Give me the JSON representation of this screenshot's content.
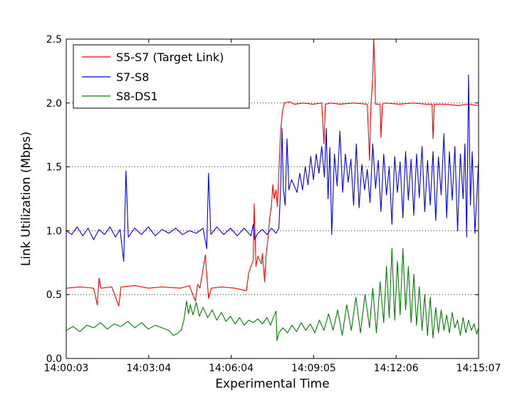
{
  "chart_data": {
    "type": "line",
    "xlabel": "Experimental Time",
    "ylabel": "Link Utilization (Mbps)",
    "x_tick_labels": [
      "14:00:03",
      "14:03:04",
      "14:06:04",
      "14:09:05",
      "14:12:06",
      "14:15:07"
    ],
    "xlim_seconds_from_start": [
      0,
      904
    ],
    "ylim": [
      0.0,
      2.5
    ],
    "y_ticks": [
      "0.0",
      "0.5",
      "1.0",
      "1.5",
      "2.0",
      "2.5"
    ],
    "grid": "horizontal dotted",
    "legend_position": "upper-left",
    "series": [
      {
        "name": "S5-S7 (Target Link)",
        "color": "#ff0000",
        "points": [
          [
            0,
            0.55
          ],
          [
            30,
            0.56
          ],
          [
            60,
            0.55
          ],
          [
            68,
            0.42
          ],
          [
            72,
            0.63
          ],
          [
            76,
            0.55
          ],
          [
            100,
            0.56
          ],
          [
            115,
            0.41
          ],
          [
            120,
            0.56
          ],
          [
            150,
            0.57
          ],
          [
            180,
            0.55
          ],
          [
            210,
            0.56
          ],
          [
            250,
            0.55
          ],
          [
            270,
            0.57
          ],
          [
            283,
            0.45
          ],
          [
            288,
            0.58
          ],
          [
            293,
            0.55
          ],
          [
            305,
            0.81
          ],
          [
            310,
            0.56
          ],
          [
            312,
            0.47
          ],
          [
            318,
            0.55
          ],
          [
            340,
            0.56
          ],
          [
            370,
            0.55
          ],
          [
            395,
            0.53
          ],
          [
            400,
            0.67
          ],
          [
            405,
            0.72
          ],
          [
            410,
            0.77
          ],
          [
            412,
            1.21
          ],
          [
            416,
            0.72
          ],
          [
            420,
            0.8
          ],
          [
            428,
            0.74
          ],
          [
            430,
            0.82
          ],
          [
            435,
            0.6
          ],
          [
            438,
            0.8
          ],
          [
            442,
            0.93
          ],
          [
            446,
            1.1
          ],
          [
            450,
            1.2
          ],
          [
            453,
            1.36
          ],
          [
            456,
            1.25
          ],
          [
            460,
            1.32
          ],
          [
            463,
            1.19
          ],
          [
            466,
            1.45
          ],
          [
            470,
            1.78
          ],
          [
            474,
            1.93
          ],
          [
            478,
            2.0
          ],
          [
            490,
            2.01
          ],
          [
            500,
            1.99
          ],
          [
            520,
            2.0
          ],
          [
            540,
            1.99
          ],
          [
            560,
            2.0
          ],
          [
            565,
            1.68
          ],
          [
            568,
            1.99
          ],
          [
            580,
            2.0
          ],
          [
            600,
            1.99
          ],
          [
            630,
            2.0
          ],
          [
            660,
            1.99
          ],
          [
            665,
            1.55
          ],
          [
            668,
            1.98
          ],
          [
            672,
            2.2
          ],
          [
            674,
            2.5
          ],
          [
            676,
            2.3
          ],
          [
            678,
            1.99
          ],
          [
            688,
            1.99
          ],
          [
            690,
            1.73
          ],
          [
            693,
            1.99
          ],
          [
            700,
            2.0
          ],
          [
            730,
            1.99
          ],
          [
            760,
            2.0
          ],
          [
            790,
            1.99
          ],
          [
            802,
            1.99
          ],
          [
            804,
            1.72
          ],
          [
            807,
            1.99
          ],
          [
            830,
            1.99
          ],
          [
            860,
            1.98
          ],
          [
            880,
            1.99
          ],
          [
            904,
            1.98
          ]
        ]
      },
      {
        "name": "S7-S8",
        "color": "#0000ff",
        "points": [
          [
            0,
            1.0
          ],
          [
            12,
            0.97
          ],
          [
            24,
            1.03
          ],
          [
            36,
            0.96
          ],
          [
            48,
            1.02
          ],
          [
            60,
            0.93
          ],
          [
            72,
            1.01
          ],
          [
            84,
            0.97
          ],
          [
            96,
            1.03
          ],
          [
            108,
            0.95
          ],
          [
            118,
            1.01
          ],
          [
            126,
            0.76
          ],
          [
            131,
            1.47
          ],
          [
            136,
            0.95
          ],
          [
            150,
            1.02
          ],
          [
            165,
            0.97
          ],
          [
            180,
            1.03
          ],
          [
            195,
            0.96
          ],
          [
            210,
            1.01
          ],
          [
            225,
            0.98
          ],
          [
            240,
            1.02
          ],
          [
            255,
            0.97
          ],
          [
            270,
            1.0
          ],
          [
            285,
            0.98
          ],
          [
            300,
            1.02
          ],
          [
            308,
            0.86
          ],
          [
            312,
            1.45
          ],
          [
            317,
            0.97
          ],
          [
            330,
            1.03
          ],
          [
            345,
            0.97
          ],
          [
            360,
            1.02
          ],
          [
            375,
            0.96
          ],
          [
            390,
            1.02
          ],
          [
            405,
            0.96
          ],
          [
            410,
            1.05
          ],
          [
            413,
            0.93
          ],
          [
            420,
            0.98
          ],
          [
            430,
            1.01
          ],
          [
            440,
            0.97
          ],
          [
            450,
            1.02
          ],
          [
            460,
            0.98
          ],
          [
            466,
            1.02
          ],
          [
            470,
            1.32
          ],
          [
            473,
            1.8
          ],
          [
            476,
            1.32
          ],
          [
            480,
            1.2
          ],
          [
            484,
            1.72
          ],
          [
            488,
            1.32
          ],
          [
            494,
            1.4
          ],
          [
            500,
            1.35
          ],
          [
            506,
            1.3
          ],
          [
            512,
            1.45
          ],
          [
            518,
            1.32
          ],
          [
            524,
            1.5
          ],
          [
            530,
            1.36
          ],
          [
            536,
            1.58
          ],
          [
            542,
            1.4
          ],
          [
            548,
            1.6
          ],
          [
            554,
            1.45
          ],
          [
            560,
            1.66
          ],
          [
            566,
            1.42
          ],
          [
            570,
            1.8
          ],
          [
            574,
            1.25
          ],
          [
            578,
            1.65
          ],
          [
            582,
            0.97
          ],
          [
            588,
            1.6
          ],
          [
            594,
            1.35
          ],
          [
            600,
            1.78
          ],
          [
            606,
            1.3
          ],
          [
            612,
            1.6
          ],
          [
            618,
            1.38
          ],
          [
            624,
            1.56
          ],
          [
            630,
            1.2
          ],
          [
            636,
            1.68
          ],
          [
            642,
            1.18
          ],
          [
            648,
            1.52
          ],
          [
            654,
            1.32
          ],
          [
            660,
            1.48
          ],
          [
            666,
            1.22
          ],
          [
            672,
            1.68
          ],
          [
            678,
            1.33
          ],
          [
            684,
            1.55
          ],
          [
            690,
            1.15
          ],
          [
            696,
            1.6
          ],
          [
            702,
            1.28
          ],
          [
            708,
            1.5
          ],
          [
            714,
            1.05
          ],
          [
            720,
            1.58
          ],
          [
            726,
            1.3
          ],
          [
            732,
            1.54
          ],
          [
            738,
            1.1
          ],
          [
            744,
            1.62
          ],
          [
            750,
            1.24
          ],
          [
            756,
            1.56
          ],
          [
            762,
            1.12
          ],
          [
            768,
            1.6
          ],
          [
            774,
            1.26
          ],
          [
            780,
            1.66
          ],
          [
            786,
            1.15
          ],
          [
            792,
            1.55
          ],
          [
            798,
            1.2
          ],
          [
            804,
            1.62
          ],
          [
            810,
            1.08
          ],
          [
            816,
            1.58
          ],
          [
            822,
            1.28
          ],
          [
            828,
            1.76
          ],
          [
            834,
            1.1
          ],
          [
            840,
            1.62
          ],
          [
            846,
            1.24
          ],
          [
            852,
            1.66
          ],
          [
            858,
            1.0
          ],
          [
            864,
            1.6
          ],
          [
            870,
            1.25
          ],
          [
            874,
            1.68
          ],
          [
            878,
            0.95
          ],
          [
            882,
            2.22
          ],
          [
            886,
            1.2
          ],
          [
            890,
            1.62
          ],
          [
            896,
            0.98
          ],
          [
            904,
            1.55
          ]
        ]
      },
      {
        "name": "S8-DS1",
        "color": "#008000",
        "points": [
          [
            0,
            0.22
          ],
          [
            15,
            0.25
          ],
          [
            30,
            0.21
          ],
          [
            45,
            0.26
          ],
          [
            60,
            0.24
          ],
          [
            75,
            0.28
          ],
          [
            90,
            0.23
          ],
          [
            105,
            0.27
          ],
          [
            120,
            0.25
          ],
          [
            135,
            0.29
          ],
          [
            150,
            0.24
          ],
          [
            165,
            0.28
          ],
          [
            180,
            0.23
          ],
          [
            195,
            0.26
          ],
          [
            210,
            0.24
          ],
          [
            225,
            0.22
          ],
          [
            235,
            0.18
          ],
          [
            245,
            0.2
          ],
          [
            252,
            0.22
          ],
          [
            258,
            0.3
          ],
          [
            264,
            0.45
          ],
          [
            268,
            0.35
          ],
          [
            272,
            0.42
          ],
          [
            278,
            0.34
          ],
          [
            285,
            0.44
          ],
          [
            292,
            0.33
          ],
          [
            300,
            0.4
          ],
          [
            310,
            0.32
          ],
          [
            320,
            0.38
          ],
          [
            330,
            0.3
          ],
          [
            340,
            0.36
          ],
          [
            350,
            0.29
          ],
          [
            360,
            0.33
          ],
          [
            370,
            0.27
          ],
          [
            380,
            0.32
          ],
          [
            390,
            0.26
          ],
          [
            400,
            0.3
          ],
          [
            410,
            0.28
          ],
          [
            420,
            0.31
          ],
          [
            430,
            0.27
          ],
          [
            440,
            0.32
          ],
          [
            448,
            0.26
          ],
          [
            455,
            0.33
          ],
          [
            460,
            0.37
          ],
          [
            462,
            0.14
          ],
          [
            466,
            0.2
          ],
          [
            475,
            0.24
          ],
          [
            485,
            0.2
          ],
          [
            495,
            0.26
          ],
          [
            505,
            0.21
          ],
          [
            515,
            0.28
          ],
          [
            525,
            0.22
          ],
          [
            535,
            0.27
          ],
          [
            545,
            0.2
          ],
          [
            555,
            0.3
          ],
          [
            565,
            0.22
          ],
          [
            575,
            0.35
          ],
          [
            585,
            0.22
          ],
          [
            595,
            0.38
          ],
          [
            605,
            0.18
          ],
          [
            615,
            0.42
          ],
          [
            625,
            0.22
          ],
          [
            635,
            0.48
          ],
          [
            645,
            0.2
          ],
          [
            655,
            0.5
          ],
          [
            665,
            0.24
          ],
          [
            672,
            0.55
          ],
          [
            680,
            0.2
          ],
          [
            688,
            0.6
          ],
          [
            696,
            0.28
          ],
          [
            702,
            0.72
          ],
          [
            708,
            0.32
          ],
          [
            714,
            0.86
          ],
          [
            720,
            0.3
          ],
          [
            726,
            0.76
          ],
          [
            732,
            0.34
          ],
          [
            738,
            0.86
          ],
          [
            744,
            0.38
          ],
          [
            750,
            0.72
          ],
          [
            756,
            0.28
          ],
          [
            762,
            0.66
          ],
          [
            768,
            0.26
          ],
          [
            774,
            0.56
          ],
          [
            780,
            0.22
          ],
          [
            786,
            0.5
          ],
          [
            792,
            0.18
          ],
          [
            798,
            0.48
          ],
          [
            804,
            0.16
          ],
          [
            810,
            0.4
          ],
          [
            816,
            0.2
          ],
          [
            822,
            0.38
          ],
          [
            828,
            0.22
          ],
          [
            834,
            0.34
          ],
          [
            840,
            0.2
          ],
          [
            846,
            0.36
          ],
          [
            852,
            0.24
          ],
          [
            858,
            0.3
          ],
          [
            864,
            0.18
          ],
          [
            870,
            0.32
          ],
          [
            876,
            0.2
          ],
          [
            882,
            0.3
          ],
          [
            888,
            0.22
          ],
          [
            894,
            0.27
          ],
          [
            900,
            0.19
          ],
          [
            904,
            0.24
          ]
        ]
      }
    ]
  }
}
